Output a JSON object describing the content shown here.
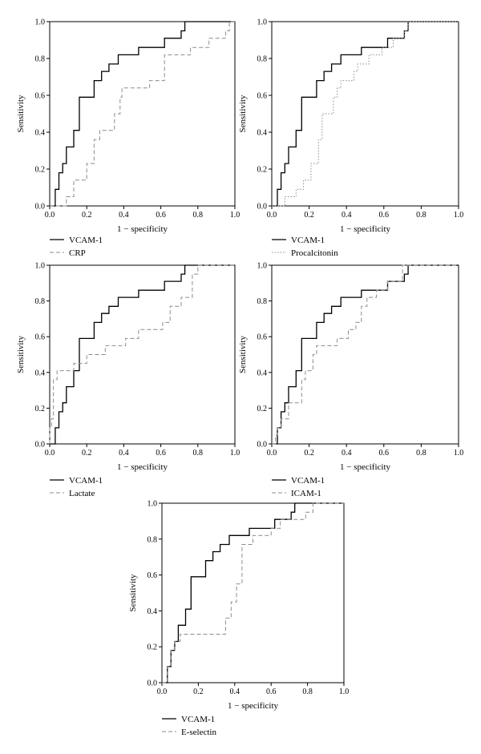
{
  "chart_data": [
    {
      "type": "line",
      "panel": "top-left",
      "xlabel": "1 − specificity",
      "ylabel": "Sensitivity",
      "xlim": [
        0,
        1
      ],
      "ylim": [
        0,
        1
      ],
      "xticks": [
        "0.0",
        "0.2",
        "0.4",
        "0.6",
        "0.8",
        "1.0"
      ],
      "yticks": [
        "0.0",
        "0.2",
        "0.4",
        "0.6",
        "0.8",
        "1.0"
      ],
      "legend": "below",
      "series": [
        {
          "name": "VCAM-1",
          "style": "solid",
          "x": [
            0,
            0.03,
            0.03,
            0.05,
            0.05,
            0.07,
            0.07,
            0.09,
            0.09,
            0.13,
            0.13,
            0.16,
            0.16,
            0.24,
            0.24,
            0.28,
            0.28,
            0.32,
            0.32,
            0.37,
            0.37,
            0.43,
            0.43,
            0.48,
            0.48,
            0.62,
            0.62,
            0.71,
            0.71,
            0.73,
            0.73,
            1.0
          ],
          "y": [
            0,
            0,
            0.09,
            0.09,
            0.18,
            0.18,
            0.23,
            0.23,
            0.32,
            0.32,
            0.41,
            0.41,
            0.59,
            0.59,
            0.68,
            0.68,
            0.73,
            0.73,
            0.77,
            0.77,
            0.82,
            0.82,
            0.82,
            0.82,
            0.86,
            0.86,
            0.91,
            0.91,
            0.95,
            0.95,
            1.0,
            1.0
          ]
        },
        {
          "name": "CRP",
          "style": "dashed",
          "x": [
            0,
            0.09,
            0.09,
            0.13,
            0.13,
            0.2,
            0.2,
            0.24,
            0.24,
            0.27,
            0.27,
            0.29,
            0.29,
            0.35,
            0.35,
            0.38,
            0.38,
            0.39,
            0.39,
            0.54,
            0.54,
            0.62,
            0.62,
            0.76,
            0.76,
            0.86,
            0.86,
            0.95,
            0.95,
            0.97,
            0.97,
            1.0
          ],
          "y": [
            0,
            0,
            0.05,
            0.05,
            0.14,
            0.14,
            0.23,
            0.23,
            0.36,
            0.36,
            0.41,
            0.41,
            0.41,
            0.41,
            0.5,
            0.5,
            0.59,
            0.59,
            0.64,
            0.64,
            0.68,
            0.68,
            0.82,
            0.82,
            0.86,
            0.86,
            0.91,
            0.91,
            0.95,
            0.95,
            1.0,
            1.0
          ]
        }
      ]
    },
    {
      "type": "line",
      "panel": "top-right",
      "xlabel": "1 − specificity",
      "ylabel": "Sensitivity",
      "xlim": [
        0,
        1
      ],
      "ylim": [
        0,
        1
      ],
      "xticks": [
        "0.0",
        "0.2",
        "0.4",
        "0.6",
        "0.8",
        "1.0"
      ],
      "yticks": [
        "0.0",
        "0.2",
        "0.4",
        "0.6",
        "0.8",
        "1.0"
      ],
      "legend": "below",
      "series": [
        {
          "name": "VCAM-1",
          "style": "solid",
          "x": [
            0,
            0.03,
            0.03,
            0.05,
            0.05,
            0.07,
            0.07,
            0.09,
            0.09,
            0.13,
            0.13,
            0.16,
            0.16,
            0.24,
            0.24,
            0.28,
            0.28,
            0.32,
            0.32,
            0.37,
            0.37,
            0.43,
            0.43,
            0.48,
            0.48,
            0.62,
            0.62,
            0.71,
            0.71,
            0.73,
            0.73,
            1.0
          ],
          "y": [
            0,
            0,
            0.09,
            0.09,
            0.18,
            0.18,
            0.23,
            0.23,
            0.32,
            0.32,
            0.41,
            0.41,
            0.59,
            0.59,
            0.68,
            0.68,
            0.73,
            0.73,
            0.77,
            0.77,
            0.82,
            0.82,
            0.82,
            0.82,
            0.86,
            0.86,
            0.91,
            0.91,
            0.95,
            0.95,
            1.0,
            1.0
          ]
        },
        {
          "name": "Procalcitonin",
          "style": "dotted",
          "x": [
            0,
            0.07,
            0.07,
            0.13,
            0.13,
            0.17,
            0.17,
            0.21,
            0.21,
            0.25,
            0.25,
            0.27,
            0.27,
            0.33,
            0.33,
            0.35,
            0.35,
            0.37,
            0.37,
            0.44,
            0.44,
            0.46,
            0.46,
            0.52,
            0.52,
            0.59,
            0.59,
            0.65,
            0.65,
            0.71,
            0.71,
            0.73,
            0.73,
            0.75,
            0.75,
            1.0
          ],
          "y": [
            0,
            0,
            0.05,
            0.05,
            0.09,
            0.09,
            0.14,
            0.14,
            0.23,
            0.23,
            0.36,
            0.36,
            0.5,
            0.5,
            0.59,
            0.59,
            0.64,
            0.64,
            0.68,
            0.68,
            0.73,
            0.73,
            0.77,
            0.77,
            0.82,
            0.82,
            0.86,
            0.86,
            0.91,
            0.91,
            0.95,
            0.95,
            1.0,
            1.0,
            1.0,
            1.0
          ]
        }
      ]
    },
    {
      "type": "line",
      "panel": "middle-left",
      "xlabel": "1 − specificity",
      "ylabel": "Sensitivity",
      "xlim": [
        0,
        1
      ],
      "ylim": [
        0,
        1
      ],
      "xticks": [
        "0.0",
        "0.2",
        "0.4",
        "0.6",
        "0.8",
        "1.0"
      ],
      "yticks": [
        "0.0",
        "0.2",
        "0.4",
        "0.6",
        "0.8",
        "1.0"
      ],
      "legend": "below",
      "series": [
        {
          "name": "VCAM-1",
          "style": "solid",
          "x": [
            0,
            0.03,
            0.03,
            0.05,
            0.05,
            0.07,
            0.07,
            0.09,
            0.09,
            0.13,
            0.13,
            0.16,
            0.16,
            0.24,
            0.24,
            0.28,
            0.28,
            0.32,
            0.32,
            0.37,
            0.37,
            0.43,
            0.43,
            0.48,
            0.48,
            0.62,
            0.62,
            0.71,
            0.71,
            0.73,
            0.73,
            1.0
          ],
          "y": [
            0,
            0,
            0.09,
            0.09,
            0.18,
            0.18,
            0.23,
            0.23,
            0.32,
            0.32,
            0.41,
            0.41,
            0.59,
            0.59,
            0.68,
            0.68,
            0.73,
            0.73,
            0.77,
            0.77,
            0.82,
            0.82,
            0.82,
            0.82,
            0.86,
            0.86,
            0.91,
            0.91,
            0.95,
            0.95,
            1.0,
            1.0
          ]
        },
        {
          "name": "Lactate",
          "style": "dashed",
          "x": [
            0,
            0.0,
            0.0,
            0.01,
            0.01,
            0.02,
            0.02,
            0.04,
            0.04,
            0.07,
            0.07,
            0.13,
            0.13,
            0.2,
            0.2,
            0.24,
            0.24,
            0.3,
            0.3,
            0.35,
            0.35,
            0.41,
            0.41,
            0.48,
            0.48,
            0.61,
            0.61,
            0.65,
            0.65,
            0.71,
            0.71,
            0.77,
            0.77,
            0.8,
            0.8,
            0.9,
            0.9,
            1.0
          ],
          "y": [
            0,
            0,
            0.09,
            0.09,
            0.14,
            0.14,
            0.36,
            0.36,
            0.41,
            0.41,
            0.41,
            0.41,
            0.45,
            0.45,
            0.5,
            0.5,
            0.5,
            0.5,
            0.55,
            0.55,
            0.55,
            0.55,
            0.59,
            0.59,
            0.64,
            0.64,
            0.68,
            0.68,
            0.77,
            0.77,
            0.82,
            0.82,
            0.95,
            0.95,
            1.0,
            1.0,
            1.0,
            1.0
          ]
        }
      ]
    },
    {
      "type": "line",
      "panel": "middle-right",
      "xlabel": "1 − specificity",
      "ylabel": "Sensitivity",
      "xlim": [
        0,
        1
      ],
      "ylim": [
        0,
        1
      ],
      "xticks": [
        "0.0",
        "0.2",
        "0.4",
        "0.6",
        "0.8",
        "1.0"
      ],
      "yticks": [
        "0.0",
        "0.2",
        "0.4",
        "0.6",
        "0.8",
        "1.0"
      ],
      "legend": "below",
      "series": [
        {
          "name": "VCAM-1",
          "style": "solid",
          "x": [
            0,
            0.03,
            0.03,
            0.05,
            0.05,
            0.07,
            0.07,
            0.09,
            0.09,
            0.13,
            0.13,
            0.16,
            0.16,
            0.24,
            0.24,
            0.28,
            0.28,
            0.32,
            0.32,
            0.37,
            0.37,
            0.43,
            0.43,
            0.48,
            0.48,
            0.62,
            0.62,
            0.71,
            0.71,
            0.73,
            0.73,
            1.0
          ],
          "y": [
            0,
            0,
            0.09,
            0.09,
            0.18,
            0.18,
            0.23,
            0.23,
            0.32,
            0.32,
            0.41,
            0.41,
            0.59,
            0.59,
            0.68,
            0.68,
            0.73,
            0.73,
            0.77,
            0.77,
            0.82,
            0.82,
            0.82,
            0.82,
            0.86,
            0.86,
            0.91,
            0.91,
            0.95,
            0.95,
            1.0,
            1.0
          ]
        },
        {
          "name": "ICAM-1",
          "style": "dashed",
          "x": [
            0,
            0.02,
            0.02,
            0.03,
            0.03,
            0.05,
            0.05,
            0.09,
            0.09,
            0.16,
            0.16,
            0.18,
            0.18,
            0.22,
            0.22,
            0.24,
            0.24,
            0.29,
            0.29,
            0.35,
            0.35,
            0.41,
            0.41,
            0.45,
            0.45,
            0.48,
            0.48,
            0.51,
            0.51,
            0.56,
            0.56,
            0.62,
            0.62,
            0.7,
            0.7,
            0.73,
            0.73,
            1.0
          ],
          "y": [
            0,
            0,
            0.05,
            0.05,
            0.09,
            0.09,
            0.14,
            0.14,
            0.23,
            0.23,
            0.36,
            0.36,
            0.41,
            0.41,
            0.5,
            0.5,
            0.55,
            0.55,
            0.55,
            0.55,
            0.59,
            0.59,
            0.64,
            0.64,
            0.68,
            0.68,
            0.77,
            0.77,
            0.82,
            0.82,
            0.86,
            0.86,
            0.91,
            0.91,
            1.0,
            1.0,
            1.0,
            1.0
          ]
        }
      ]
    },
    {
      "type": "line",
      "panel": "bottom-center",
      "xlabel": "1 − specificity",
      "ylabel": "Sensitivity",
      "xlim": [
        0,
        1
      ],
      "ylim": [
        0,
        1
      ],
      "xticks": [
        "0.0",
        "0.2",
        "0.4",
        "0.6",
        "0.8",
        "1.0"
      ],
      "yticks": [
        "0.0",
        "0.2",
        "0.4",
        "0.6",
        "0.8",
        "1.0"
      ],
      "legend": "below",
      "series": [
        {
          "name": "VCAM-1",
          "style": "solid",
          "x": [
            0,
            0.03,
            0.03,
            0.05,
            0.05,
            0.07,
            0.07,
            0.09,
            0.09,
            0.13,
            0.13,
            0.16,
            0.16,
            0.24,
            0.24,
            0.28,
            0.28,
            0.32,
            0.32,
            0.37,
            0.37,
            0.43,
            0.43,
            0.48,
            0.48,
            0.62,
            0.62,
            0.71,
            0.71,
            0.73,
            0.73,
            1.0
          ],
          "y": [
            0,
            0,
            0.09,
            0.09,
            0.18,
            0.18,
            0.23,
            0.23,
            0.32,
            0.32,
            0.41,
            0.41,
            0.59,
            0.59,
            0.68,
            0.68,
            0.73,
            0.73,
            0.77,
            0.77,
            0.82,
            0.82,
            0.82,
            0.82,
            0.86,
            0.86,
            0.91,
            0.91,
            0.95,
            0.95,
            1.0,
            1.0
          ]
        },
        {
          "name": "E-selectin",
          "style": "dashed",
          "x": [
            0,
            0.03,
            0.03,
            0.05,
            0.05,
            0.07,
            0.07,
            0.1,
            0.1,
            0.24,
            0.24,
            0.35,
            0.35,
            0.38,
            0.38,
            0.41,
            0.41,
            0.44,
            0.44,
            0.5,
            0.5,
            0.6,
            0.6,
            0.65,
            0.65,
            0.79,
            0.79,
            0.83,
            0.83,
            0.85,
            0.85,
            0.87,
            0.87,
            1.0
          ],
          "y": [
            0,
            0,
            0.09,
            0.09,
            0.18,
            0.18,
            0.23,
            0.23,
            0.27,
            0.27,
            0.27,
            0.27,
            0.36,
            0.36,
            0.45,
            0.45,
            0.55,
            0.55,
            0.77,
            0.77,
            0.82,
            0.82,
            0.86,
            0.86,
            0.91,
            0.91,
            0.95,
            0.95,
            1.0,
            1.0,
            1.0,
            1.0,
            1.0,
            1.0
          ]
        }
      ]
    }
  ]
}
